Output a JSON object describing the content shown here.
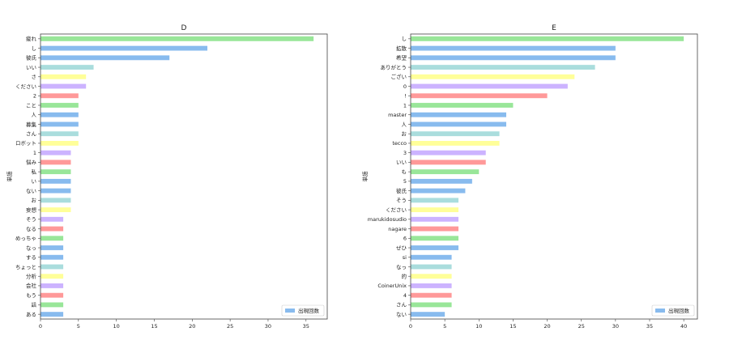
{
  "colors": {
    "palette": [
      "#99e699",
      "#88bbee",
      "#88bbee",
      "#aadddd",
      "#ffff99",
      "#ccb3ff",
      "#ff9999"
    ],
    "legend_swatch": "#88bbee",
    "frame": "#444444"
  },
  "chart_data": [
    {
      "type": "bar",
      "orientation": "horizontal",
      "title": "D",
      "ylabel": "単語",
      "xlabel": "",
      "legend": {
        "label": "出現回数",
        "placement": "lower-right"
      },
      "xlim": [
        0,
        37.8
      ],
      "xticks": [
        0,
        5,
        10,
        15,
        20,
        25,
        30,
        35
      ],
      "grid": false,
      "categories": [
        "疲れ",
        "し",
        "彼氏",
        "いい",
        "さ",
        "ください",
        "2",
        "こと",
        "人",
        "募集",
        "さん",
        "ロボット",
        "1",
        "悩み",
        "私",
        "い",
        "ない",
        "お",
        "妄想",
        "そう",
        "なる",
        "めっちゃ",
        "なっ",
        "する",
        "ちょっと",
        "分析",
        "会社",
        "もう",
        "話",
        "ある"
      ],
      "values": [
        36,
        22,
        17,
        7,
        6,
        6,
        5,
        5,
        5,
        5,
        5,
        5,
        4,
        4,
        4,
        4,
        4,
        4,
        4,
        3,
        3,
        3,
        3,
        3,
        3,
        3,
        3,
        3,
        3,
        3
      ],
      "bar_colors": [
        "#99e699",
        "#88bbee",
        "#88bbee",
        "#aadddd",
        "#ffff99",
        "#ccb3ff",
        "#ff9999",
        "#99e699",
        "#88bbee",
        "#88bbee",
        "#aadddd",
        "#ffff99",
        "#ccb3ff",
        "#ff9999",
        "#99e699",
        "#88bbee",
        "#88bbee",
        "#aadddd",
        "#ffff99",
        "#ccb3ff",
        "#ff9999",
        "#99e699",
        "#88bbee",
        "#88bbee",
        "#aadddd",
        "#ffff99",
        "#ccb3ff",
        "#ff9999",
        "#99e699",
        "#88bbee"
      ]
    },
    {
      "type": "bar",
      "orientation": "horizontal",
      "title": "E",
      "ylabel": "単語",
      "xlabel": "",
      "legend": {
        "label": "出現回数",
        "placement": "lower-right"
      },
      "xlim": [
        0,
        42
      ],
      "xticks": [
        0,
        5,
        10,
        15,
        20,
        25,
        30,
        35,
        40
      ],
      "grid": false,
      "categories": [
        "し",
        "拡散",
        "希望",
        "ありがとう",
        "ござい",
        "0",
        "!",
        "1",
        "master",
        "人",
        "お",
        "tecco",
        "3",
        "いい",
        "も",
        "5",
        "彼氏",
        "そう",
        "ください",
        "marukidosudio",
        "nagare",
        "6",
        "ぜひ",
        "si",
        "なっ",
        "的",
        "CoinerUnix",
        "4",
        "さん",
        "ない"
      ],
      "values": [
        40,
        30,
        30,
        27,
        24,
        23,
        20,
        15,
        14,
        14,
        13,
        13,
        11,
        11,
        10,
        9,
        8,
        7,
        7,
        7,
        7,
        7,
        7,
        6,
        6,
        6,
        6,
        6,
        6,
        5
      ],
      "bar_colors": [
        "#99e699",
        "#88bbee",
        "#88bbee",
        "#aadddd",
        "#ffff99",
        "#ccb3ff",
        "#ff9999",
        "#99e699",
        "#88bbee",
        "#88bbee",
        "#aadddd",
        "#ffff99",
        "#ccb3ff",
        "#ff9999",
        "#99e699",
        "#88bbee",
        "#88bbee",
        "#aadddd",
        "#ffff99",
        "#ccb3ff",
        "#ff9999",
        "#99e699",
        "#88bbee",
        "#88bbee",
        "#aadddd",
        "#ffff99",
        "#ccb3ff",
        "#ff9999",
        "#99e699",
        "#88bbee"
      ]
    }
  ]
}
